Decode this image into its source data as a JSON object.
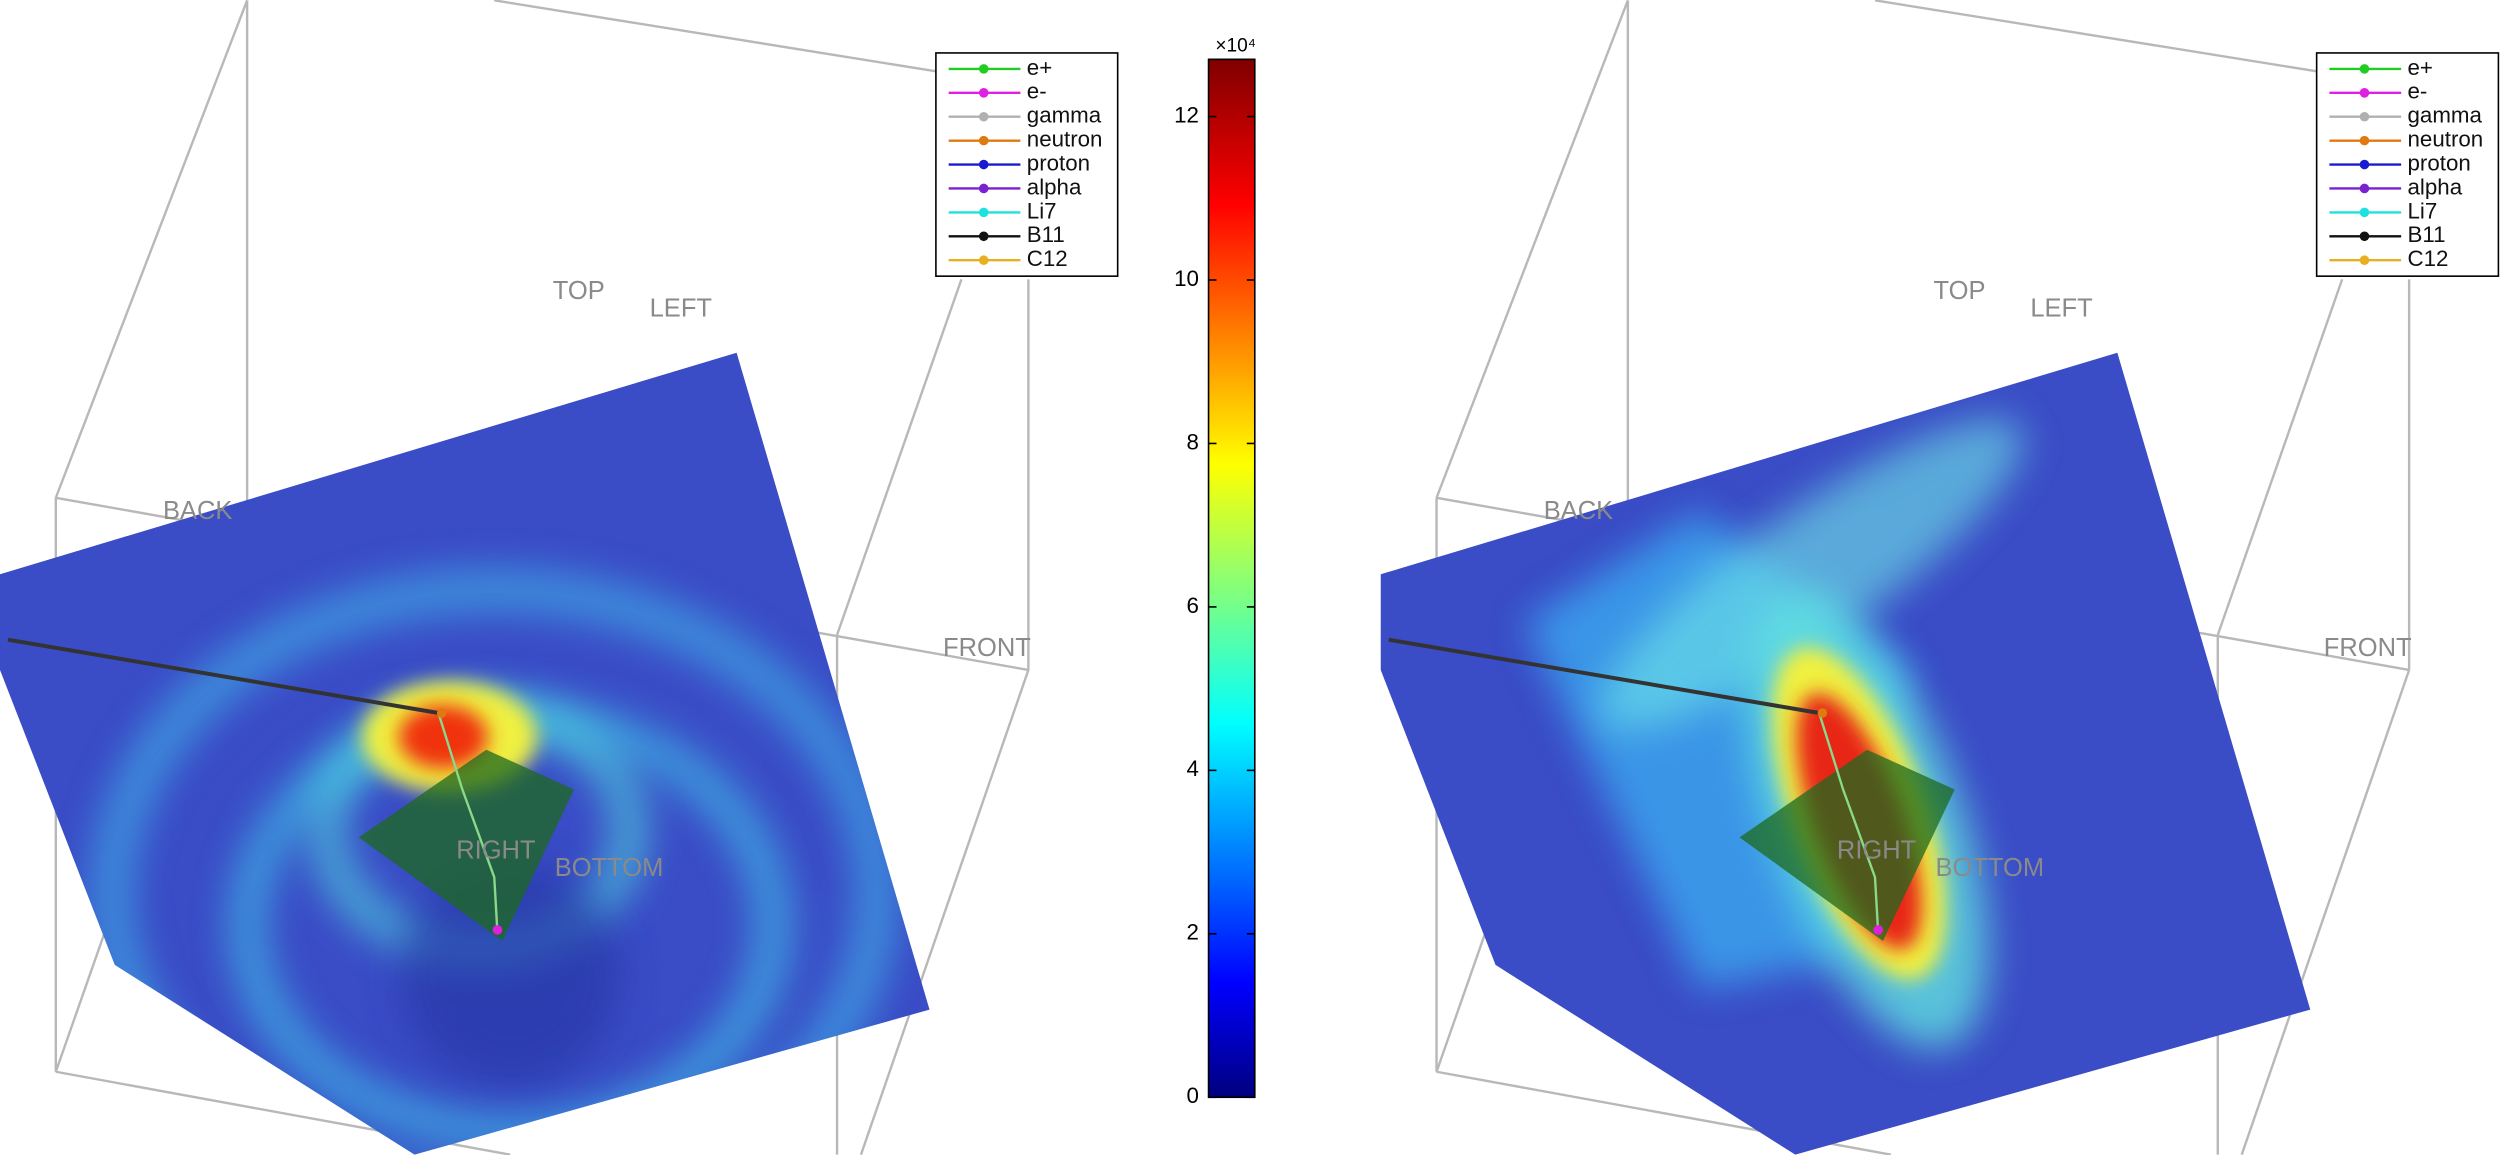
{
  "chart_data": [
    {
      "type": "slice3d",
      "view_labels": {
        "top": "TOP",
        "left": "LEFT",
        "back": "BACK",
        "front": "FRONT",
        "right": "RIGHT",
        "bottom": "BOTTOM"
      },
      "series": [
        {
          "name": "e+",
          "color": "#22cc22"
        },
        {
          "name": "e-",
          "color": "#e020e0"
        },
        {
          "name": "gamma",
          "color": "#b0b0b0"
        },
        {
          "name": "neutron",
          "color": "#e07a10"
        },
        {
          "name": "proton",
          "color": "#1a1ad0"
        },
        {
          "name": "alpha",
          "color": "#7a22d0"
        },
        {
          "name": "Li7",
          "color": "#20e0e0"
        },
        {
          "name": "B11",
          "color": "#111111"
        },
        {
          "name": "C12",
          "color": "#e8b020"
        }
      ]
    },
    {
      "type": "slice3d",
      "view_labels": {
        "top": "TOP",
        "left": "LEFT",
        "back": "BACK",
        "front": "FRONT",
        "right": "RIGHT",
        "bottom": "BOTTOM"
      },
      "series": [
        {
          "name": "e+",
          "color": "#22cc22"
        },
        {
          "name": "e-",
          "color": "#e020e0"
        },
        {
          "name": "gamma",
          "color": "#b0b0b0"
        },
        {
          "name": "neutron",
          "color": "#e07a10"
        },
        {
          "name": "proton",
          "color": "#1a1ad0"
        },
        {
          "name": "alpha",
          "color": "#7a22d0"
        },
        {
          "name": "Li7",
          "color": "#20e0e0"
        },
        {
          "name": "B11",
          "color": "#111111"
        },
        {
          "name": "C12",
          "color": "#e8b020"
        }
      ]
    },
    {
      "type": "colorbar",
      "multiplier": "×10⁴",
      "ylim": [
        0,
        12.7
      ],
      "yticks": [
        0,
        2,
        4,
        6,
        8,
        10,
        12
      ]
    }
  ]
}
